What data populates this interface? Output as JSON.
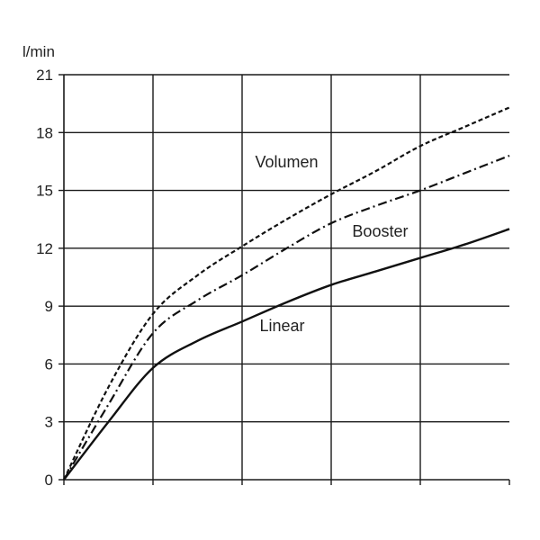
{
  "chart_data": {
    "type": "line",
    "title": "",
    "ylabel": "l/min",
    "xlabel": "",
    "ylim": [
      0,
      21
    ],
    "xlim": [
      0,
      5
    ],
    "yticks": [
      0,
      3,
      6,
      9,
      12,
      15,
      18,
      21
    ],
    "xticks": [
      0,
      1,
      2,
      3,
      4,
      5
    ],
    "xticks_labeled": false,
    "grid": true,
    "series": [
      {
        "name": "Volumen",
        "style": "dashed",
        "color": "#111111",
        "x": [
          0,
          0.5,
          1.0,
          1.5,
          2.0,
          2.5,
          3.0,
          3.5,
          4.0,
          4.5,
          5.0
        ],
        "y": [
          0,
          4.8,
          8.6,
          10.6,
          12.1,
          13.5,
          14.8,
          16.0,
          17.3,
          18.3,
          19.3
        ]
      },
      {
        "name": "Booster",
        "style": "dashdot",
        "color": "#111111",
        "x": [
          0,
          0.5,
          1.0,
          1.5,
          2.0,
          2.5,
          3.0,
          3.5,
          4.0,
          4.5,
          5.0
        ],
        "y": [
          0,
          3.9,
          7.6,
          9.3,
          10.6,
          12.0,
          13.3,
          14.2,
          15.0,
          15.9,
          16.8
        ]
      },
      {
        "name": "Linear",
        "style": "solid",
        "color": "#111111",
        "x": [
          0,
          0.5,
          1.0,
          1.5,
          2.0,
          2.5,
          3.0,
          3.5,
          4.0,
          4.5,
          5.0
        ],
        "y": [
          0,
          3.0,
          5.8,
          7.2,
          8.2,
          9.2,
          10.1,
          10.8,
          11.5,
          12.2,
          13.0
        ]
      }
    ],
    "labels": [
      {
        "text": "Volumen",
        "series": "Volumen",
        "at_x": 2.5,
        "at_y": 16.2
      },
      {
        "text": "Booster",
        "series": "Booster",
        "at_x": 3.55,
        "at_y": 12.6
      },
      {
        "text": "Linear",
        "series": "Linear",
        "at_x": 2.45,
        "at_y": 7.7
      }
    ]
  }
}
